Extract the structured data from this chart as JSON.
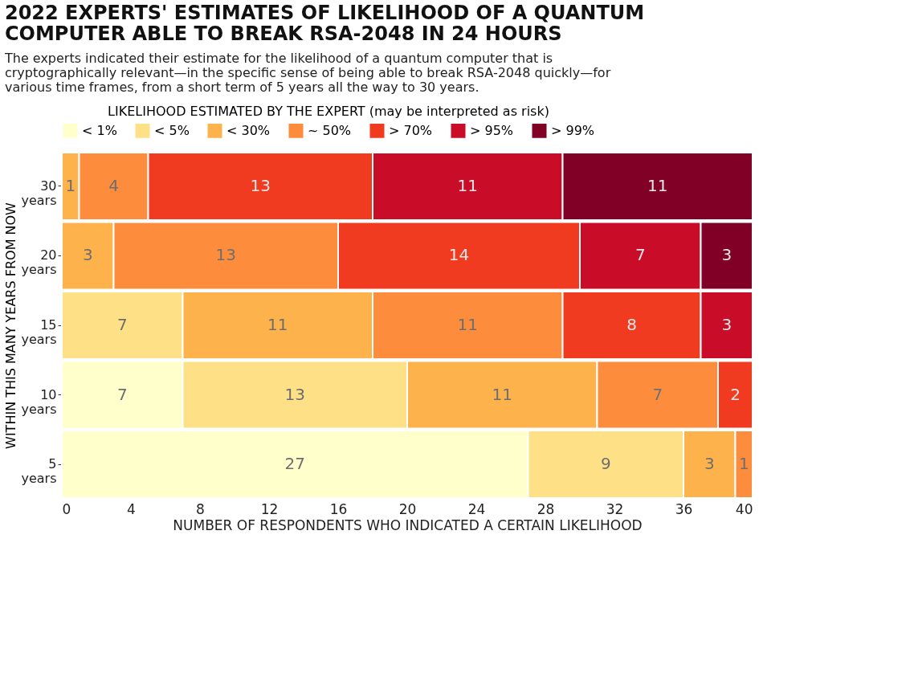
{
  "chart_data": {
    "type": "bar",
    "orientation": "horizontal",
    "stacked": true,
    "data_labels": true,
    "legend": "top",
    "title": "2022 EXPERTS' ESTIMATES OF LIKELIHOOD OF A QUANTUM COMPUTER ABLE TO BREAK RSA-2048 IN 24 HOURS",
    "subtitle": "The experts indicated their estimate for the likelihood of a quantum computer that is cryptographically relevant—in the specific sense of being able to break RSA-2048 quickly—for various time frames, from a short term of 5 years all the way to 30 years.",
    "legend_title": "LIKELIHOOD ESTIMATED BY THE EXPERT (may be interpreted as risk)",
    "xlabel": "NUMBER OF RESPONDENTS WHO INDICATED A CERTAIN LIKELIHOOD",
    "ylabel": "WITHIN THIS MANY YEARS FROM NOW",
    "categories": [
      "30 years",
      "20 years",
      "15 years",
      "10 years",
      "5 years"
    ],
    "xlim": [
      0,
      40
    ],
    "xticks": [
      0,
      4,
      8,
      12,
      16,
      20,
      24,
      28,
      32,
      36,
      40
    ],
    "series": [
      {
        "name": "< 1%",
        "color": "#ffffcc",
        "values": [
          null,
          null,
          null,
          7,
          27
        ]
      },
      {
        "name": "< 5%",
        "color": "#fee087",
        "values": [
          null,
          null,
          7,
          13,
          9
        ]
      },
      {
        "name": "< 30%",
        "color": "#feb24c",
        "values": [
          1,
          3,
          11,
          11,
          3
        ]
      },
      {
        "name": "~ 50%",
        "color": "#fd8d3c",
        "values": [
          4,
          13,
          11,
          7,
          1
        ]
      },
      {
        "name": "> 70%",
        "color": "#f03b20",
        "values": [
          13,
          14,
          8,
          2,
          null
        ]
      },
      {
        "name": "> 95%",
        "color": "#c90d29",
        "values": [
          11,
          7,
          3,
          null,
          null
        ]
      },
      {
        "name": "> 99%",
        "color": "#800026",
        "values": [
          11,
          3,
          null,
          null,
          null
        ]
      }
    ]
  }
}
